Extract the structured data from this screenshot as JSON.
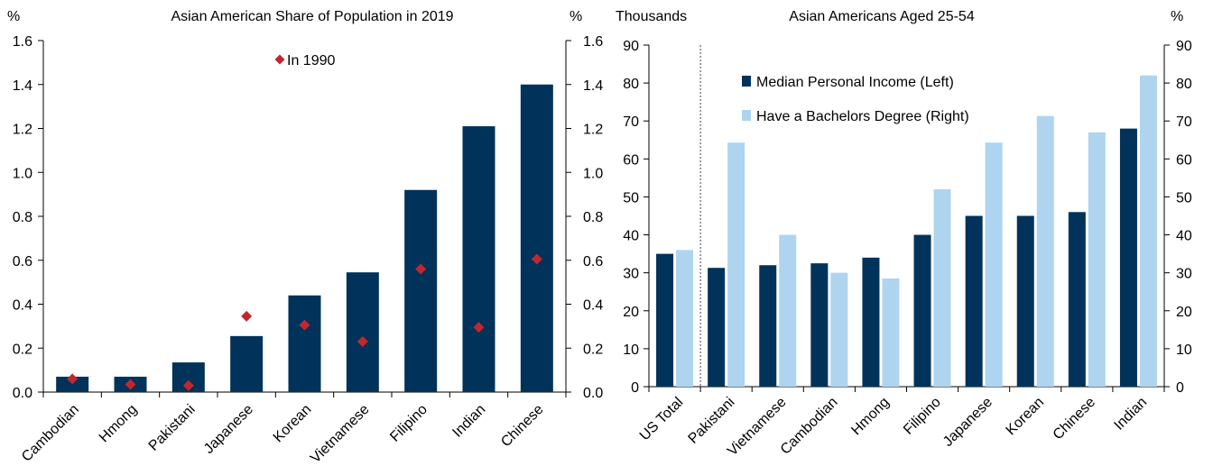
{
  "chart_data": [
    {
      "type": "bar",
      "title": "Asian American Share of Population in 2019",
      "ylabel_left": "%",
      "ylabel_right": "%",
      "ylim": [
        0,
        1.6
      ],
      "yticks": [
        "0.0",
        "0.2",
        "0.4",
        "0.6",
        "0.8",
        "1.0",
        "1.2",
        "1.4",
        "1.6"
      ],
      "categories": [
        "Cambodian",
        "Hmong",
        "Pakistani",
        "Japanese",
        "Korean",
        "Vietnamese",
        "Filipino",
        "Indian",
        "Chinese"
      ],
      "series": [
        {
          "values": [
            0.07,
            0.07,
            0.135,
            0.255,
            0.44,
            0.545,
            0.92,
            1.21,
            1.4
          ],
          "color": "#00325a"
        },
        {
          "name": "In 1990",
          "type": "scatter",
          "marker": "diamond",
          "values": [
            0.06,
            0.035,
            0.03,
            0.345,
            0.305,
            0.23,
            0.56,
            0.295,
            0.605
          ],
          "color": "#c0282d"
        }
      ],
      "legend": {
        "position": "top-center",
        "label": "In 1990"
      }
    },
    {
      "type": "bar",
      "title": "Asian Americans Aged 25-54",
      "ylabel_left": "Thousands",
      "ylabel_right": "%",
      "ylim": [
        0,
        90
      ],
      "yticks": [
        "0",
        "10",
        "20",
        "30",
        "40",
        "50",
        "60",
        "70",
        "80",
        "90"
      ],
      "categories": [
        "US Total",
        "Pakistani",
        "Vietnamese",
        "Cambodian",
        "Hmong",
        "Filipino",
        "Japanese",
        "Korean",
        "Chinese",
        "Indian"
      ],
      "series": [
        {
          "name": "Median Personal Income (Left)",
          "axis": "left",
          "values": [
            35,
            31.3,
            32,
            32.5,
            34,
            40,
            45,
            45,
            46,
            68
          ],
          "color": "#00325a"
        },
        {
          "name": "Have a Bachelors Degree (Right)",
          "axis": "right",
          "values": [
            36,
            64.3,
            40,
            30,
            28.5,
            52,
            64.3,
            71.3,
            67,
            82
          ],
          "color": "#aed4ef"
        }
      ],
      "legend": {
        "position": "top-center",
        "labels": [
          "Median Personal Income (Left)",
          "Have a Bachelors Degree (Right)"
        ]
      }
    }
  ]
}
